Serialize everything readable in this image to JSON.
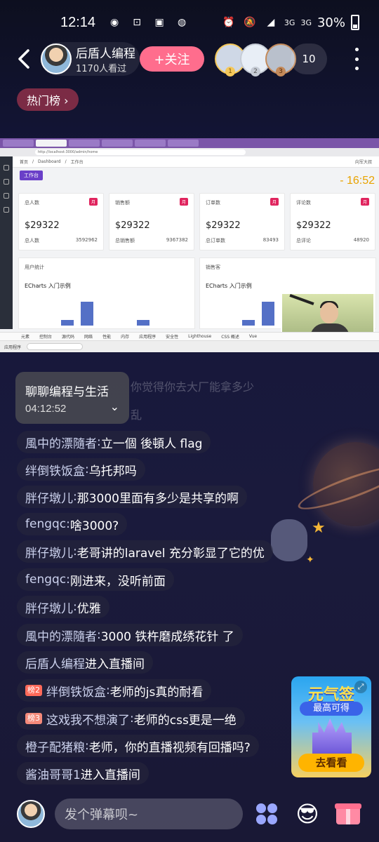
{
  "status_bar": {
    "time": "12:14",
    "network_label_1": "3G",
    "network_label_2": "3G",
    "battery": "30%"
  },
  "header": {
    "host_name": "后盾人编程",
    "viewers": "1170人看过",
    "follow_label": "+关注",
    "viewer_count": "10",
    "rank_medals": [
      "1",
      "2",
      "3"
    ]
  },
  "hot_rank": {
    "label": "热门榜 ›"
  },
  "stream": {
    "address": "http://localhost:3000/admin/home",
    "breadcrumb": [
      "首页",
      "Dashboard",
      "工作台"
    ],
    "workspace_tag": "工作台",
    "clock": "- 16:52",
    "user_label": "向军大叔",
    "cards": [
      {
        "title": "总人数",
        "tag": "月",
        "value": "$29322",
        "foot_label": "总人数",
        "foot_value": "3592962"
      },
      {
        "title": "销售额",
        "tag": "月",
        "value": "$29322",
        "foot_label": "总销售额",
        "foot_value": "9367382"
      },
      {
        "title": "订单数",
        "tag": "月",
        "value": "$29322",
        "foot_label": "总订单数",
        "foot_value": "83493"
      },
      {
        "title": "评论数",
        "tag": "月",
        "value": "$29322",
        "foot_label": "总评论",
        "foot_value": "48920"
      }
    ],
    "panels": [
      {
        "header": "用户统计",
        "chart_title": "ECharts 入门示例"
      },
      {
        "header": "销售客",
        "chart_title": "ECharts 入门示例"
      }
    ],
    "devtools_tabs": [
      "元素",
      "控制台",
      "源代码",
      "网络",
      "性能",
      "内存",
      "应用程序",
      "安全性",
      "Lighthouse",
      "CSS 概述",
      "Vue"
    ],
    "taskbar_label": "应用程序"
  },
  "section_popup": {
    "title": "聊聊编程与生活",
    "time": "04:12:52"
  },
  "faded_lines": [
    "你觉得你去大厂能拿多少",
    "乱"
  ],
  "chat": [
    {
      "user": "風中的漂隨者",
      "text": "立一個 後頓人 flag",
      "badge": ""
    },
    {
      "user": "绊倒铁饭盒",
      "text": "乌托邦吗",
      "badge": ""
    },
    {
      "user": "胖仔墩儿",
      "text": "那3000里面有多少是共享的啊",
      "badge": ""
    },
    {
      "user": "fengqc",
      "text": "啥3000?",
      "badge": ""
    },
    {
      "user": "胖仔墩儿",
      "text": "老哥讲的laravel 充分彰显了它的优",
      "badge": ""
    },
    {
      "user": "fengqc",
      "text": "刚进来，没听前面",
      "badge": ""
    },
    {
      "user": "胖仔墩儿",
      "text": "优雅",
      "badge": ""
    },
    {
      "user": "風中的漂隨者",
      "text": "3000 铁杵磨成绣花针 了",
      "badge": ""
    },
    {
      "user": "后盾人编程",
      "text": "进入直播间",
      "badge": ""
    },
    {
      "user": "绊倒铁饭盒",
      "text": "老师的js真的耐看",
      "badge": "榜2"
    },
    {
      "user": "这戏我不想演了",
      "text": "老师的css更是一绝",
      "badge": "榜3"
    },
    {
      "user": "橙子配猪粮",
      "text": "老师，你的直播视频有回播吗?",
      "badge": ""
    },
    {
      "user": "酱油哥哥1",
      "text": "进入直播间",
      "badge": ""
    }
  ],
  "ad": {
    "title": "元气签",
    "subtitle": "最高可得",
    "button": "去看看"
  },
  "bottom": {
    "input_placeholder": "发个弹幕呗~"
  },
  "colors": {
    "follow": "#ff6d8d",
    "hot_rank": "#7b2b45",
    "accent_clock": "#e8a300"
  }
}
